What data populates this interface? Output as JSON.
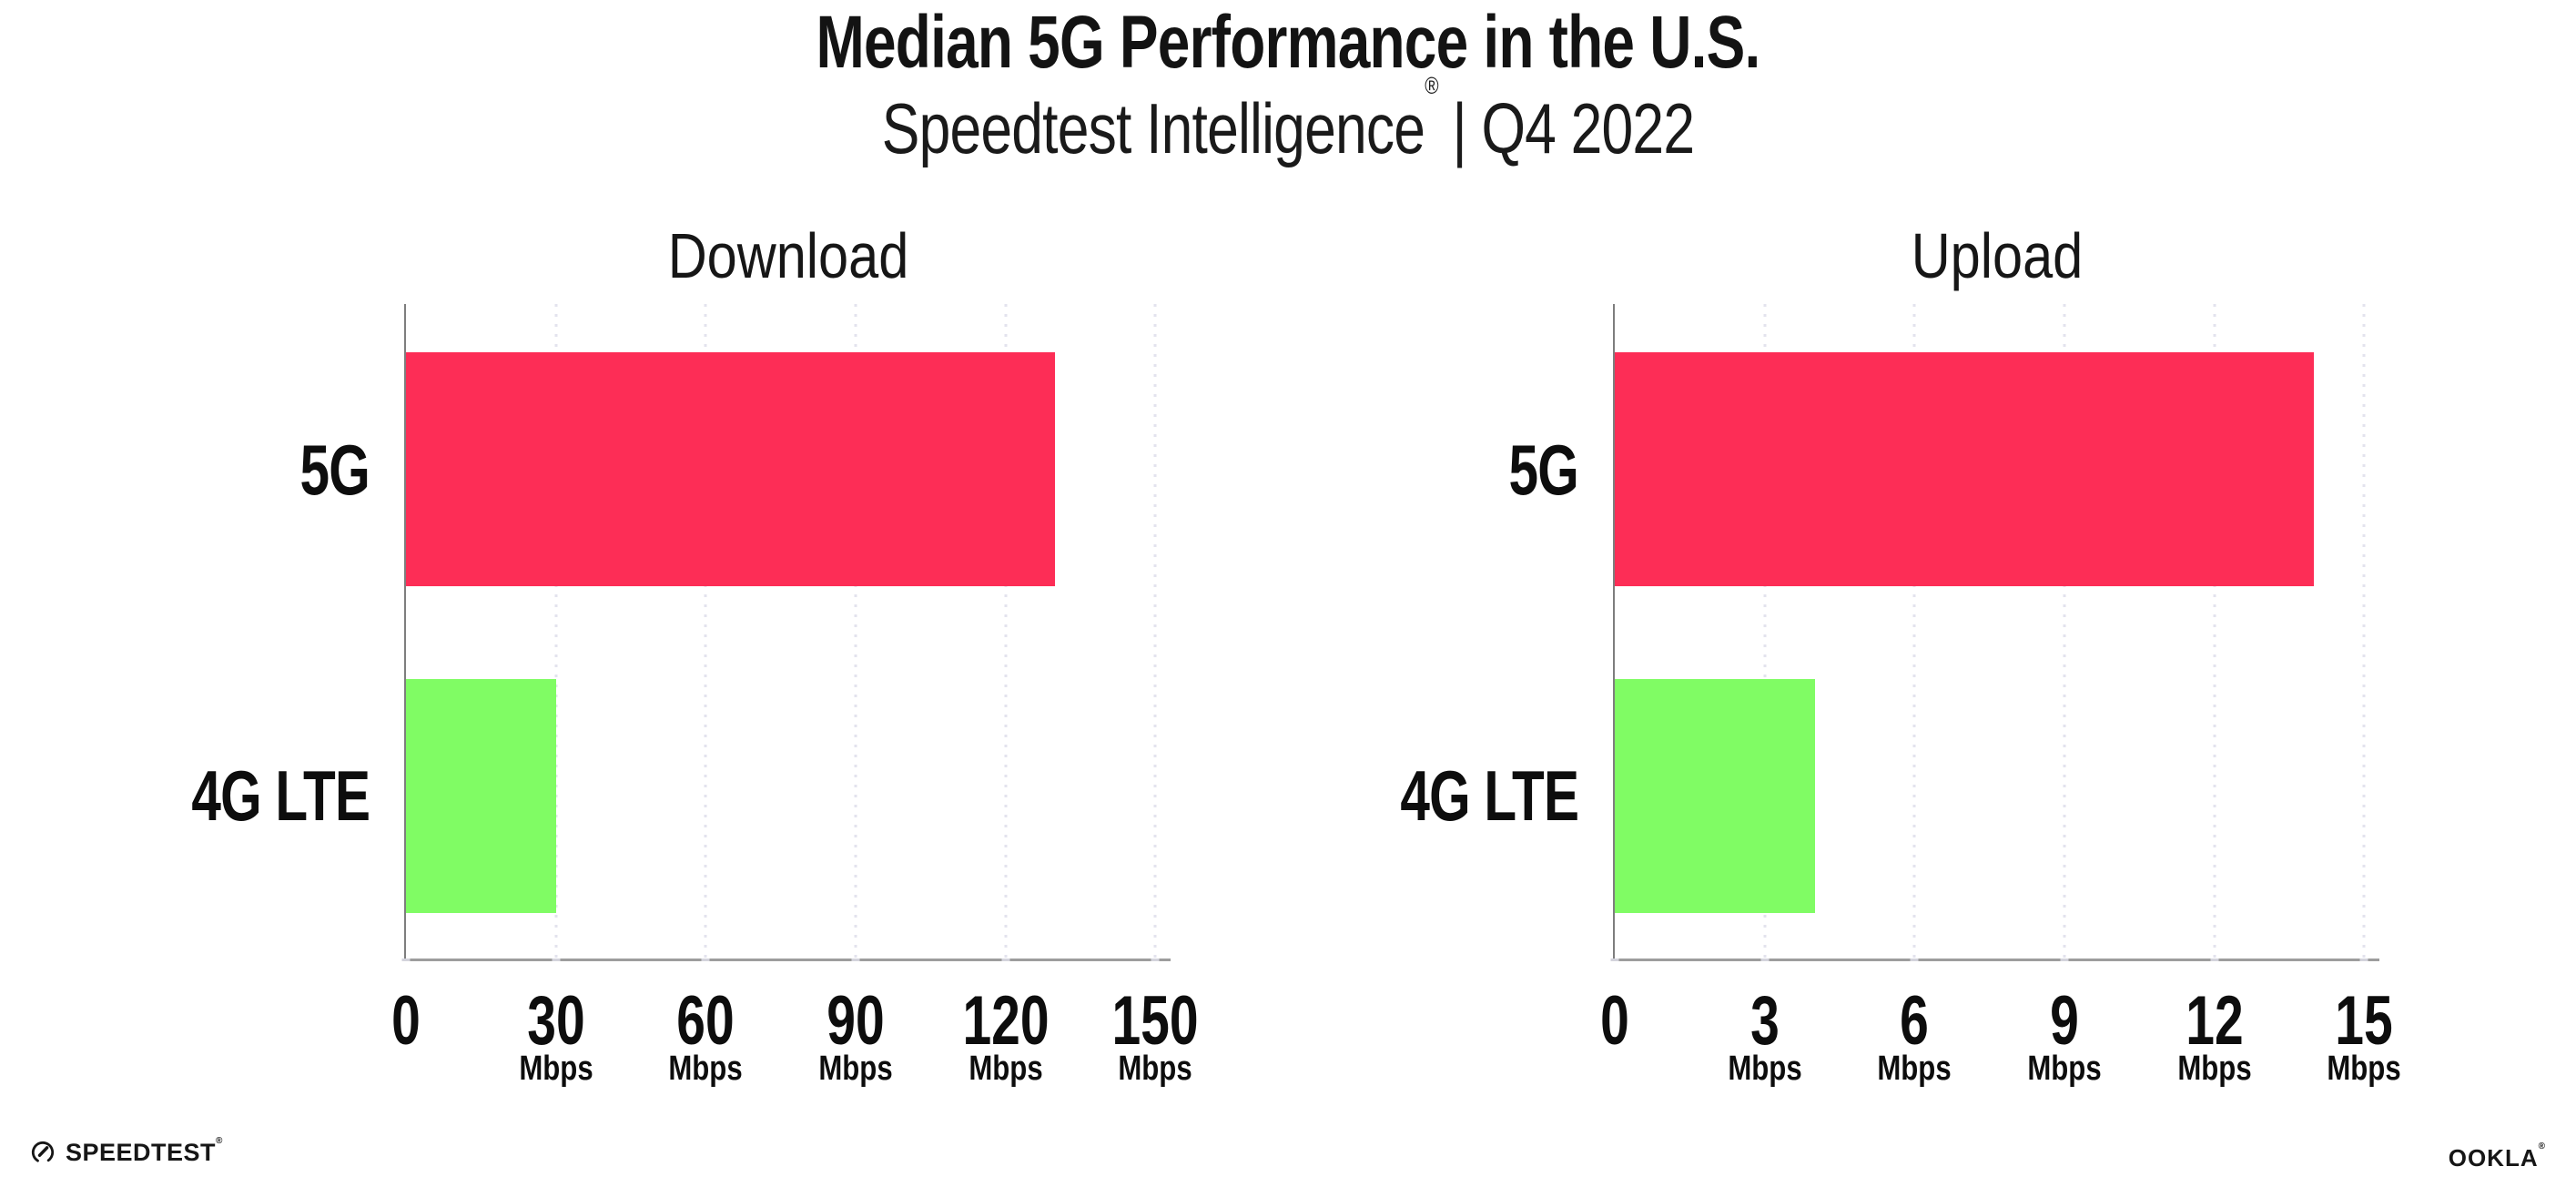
{
  "header": {
    "title": "Median 5G Performance in the U.S.",
    "subtitle_brand": "Speedtest Intelligence",
    "subtitle_registered_mark": "®",
    "subtitle_period": "| Q4 2022"
  },
  "chart_data": [
    {
      "type": "bar",
      "orientation": "horizontal",
      "title": "Download",
      "categories": [
        "5G",
        "4G LTE"
      ],
      "values": [
        130,
        30
      ],
      "unit": "Mbps",
      "xlim": [
        0,
        150
      ],
      "xticks": [
        0,
        30,
        60,
        90,
        120,
        150
      ],
      "xtick_unit_label": "Mbps",
      "grid": "vertical-dotted",
      "legend": "none",
      "bar_colors": [
        "#FD2D56",
        "#80FC64"
      ]
    },
    {
      "type": "bar",
      "orientation": "horizontal",
      "title": "Upload",
      "categories": [
        "5G",
        "4G LTE"
      ],
      "values": [
        14,
        4
      ],
      "unit": "Mbps",
      "xlim": [
        0,
        15
      ],
      "xticks": [
        0,
        3,
        6,
        9,
        12,
        15
      ],
      "xtick_unit_label": "Mbps",
      "grid": "vertical-dotted",
      "legend": "none",
      "bar_colors": [
        "#FD2D56",
        "#80FC64"
      ]
    }
  ],
  "colors": {
    "bar_5g": "#FD2D56",
    "bar_4g_lte": "#80FC64",
    "gridline": "#E3E3EE",
    "axis_left": "#7E7E7E",
    "axis_bottom": "#9D9D9D",
    "tick_dash": "#D3D3DC",
    "text": "#131313",
    "background": "#FFFFFF"
  },
  "footer": {
    "speedtest_label": "SPEEDTEST",
    "speedtest_mark": "®",
    "ookla_label": "OOKLA",
    "ookla_mark": "®"
  }
}
